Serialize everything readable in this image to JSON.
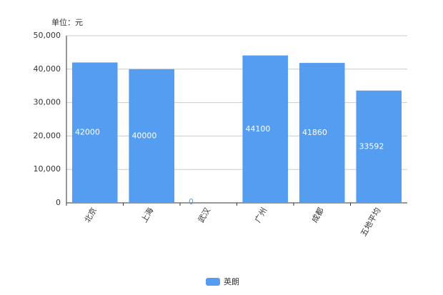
{
  "chart_data": {
    "type": "bar",
    "unit_label": "单位：元",
    "categories": [
      "北京",
      "上海",
      "武汉",
      "广州",
      "成都",
      "五地平均"
    ],
    "series": [
      {
        "name": "英朗",
        "color": "#549df0",
        "values": [
          42000,
          40000,
          0,
          44100,
          41860,
          33592
        ]
      }
    ],
    "ylim": [
      0,
      50000
    ],
    "yticks": [
      0,
      {
        "value": 10000,
        "label": "10,000"
      },
      {
        "value": 20000,
        "label": "20,000"
      },
      {
        "value": 30000,
        "label": "30,000"
      },
      {
        "value": 40000,
        "label": "40,000"
      },
      {
        "value": 50000,
        "label": "50,000"
      }
    ],
    "grid": true
  }
}
